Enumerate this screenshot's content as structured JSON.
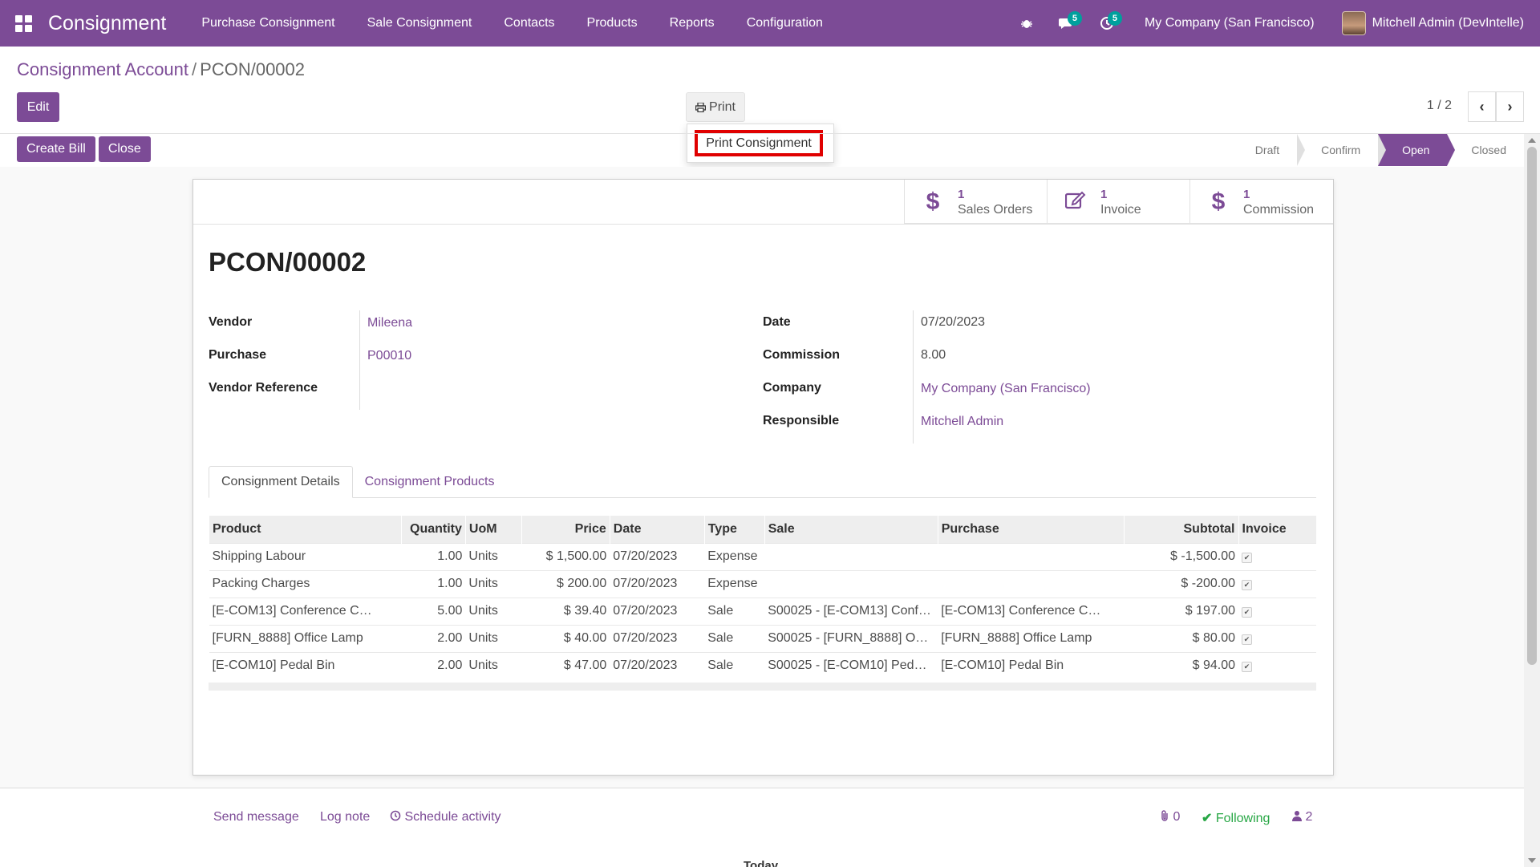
{
  "navbar": {
    "app_name": "Consignment",
    "menu": [
      "Purchase Consignment",
      "Sale Consignment",
      "Contacts",
      "Products",
      "Reports",
      "Configuration"
    ],
    "messages_badge": "5",
    "activities_badge": "5",
    "company": "My Company (San Francisco)",
    "user": "Mitchell Admin (DevIntelle)",
    "bg_color": "#7c4b96"
  },
  "breadcrumb": {
    "parent": "Consignment Account",
    "separator": "/",
    "current": "PCON/00002"
  },
  "toolbar": {
    "edit_label": "Edit",
    "print_label": "Print",
    "print_menu_item": "Print Consignment",
    "pager": "1 / 2"
  },
  "statusbar": {
    "buttons": [
      "Create Bill",
      "Close"
    ],
    "stages": [
      "Draft",
      "Confirm",
      "Open",
      "Closed"
    ],
    "active_stage": "Open"
  },
  "smart_buttons": [
    {
      "value": "1",
      "label": "Sales Orders",
      "icon": "dollar-icon"
    },
    {
      "value": "1",
      "label": "Invoice",
      "icon": "pencil-square-icon"
    },
    {
      "value": "1",
      "label": "Commission",
      "icon": "dollar-icon"
    }
  ],
  "record": {
    "title": "PCON/00002",
    "left_fields": [
      {
        "label": "Vendor",
        "value": "Mileena"
      },
      {
        "label": "Purchase",
        "value": "P00010"
      },
      {
        "label": "Vendor Reference",
        "value": ""
      }
    ],
    "right_fields": [
      {
        "label": "Date",
        "value": "07/20/2023"
      },
      {
        "label": "Commission",
        "value": "8.00"
      },
      {
        "label": "Company",
        "value": "My Company (San Francisco)"
      },
      {
        "label": "Responsible",
        "value": "Mitchell Admin"
      }
    ]
  },
  "tabs": [
    "Consignment Details",
    "Consignment Products"
  ],
  "lines": {
    "columns": [
      "Product",
      "Quantity",
      "UoM",
      "Price",
      "Date",
      "Type",
      "Sale",
      "Purchase",
      "Subtotal",
      "Invoice"
    ],
    "rows": [
      {
        "product": "Shipping Labour",
        "quantity": "1.00",
        "uom": "Units",
        "price": "$ 1,500.00",
        "date": "07/20/2023",
        "type": "Expense",
        "sale": "",
        "purchase": "",
        "subtotal": "$ -1,500.00",
        "invoice": true
      },
      {
        "product": "Packing Charges",
        "quantity": "1.00",
        "uom": "Units",
        "price": "$ 200.00",
        "date": "07/20/2023",
        "type": "Expense",
        "sale": "",
        "purchase": "",
        "subtotal": "$ -200.00",
        "invoice": true
      },
      {
        "product": "[E-COM13] Conference C…",
        "quantity": "5.00",
        "uom": "Units",
        "price": "$ 39.40",
        "date": "07/20/2023",
        "type": "Sale",
        "sale": "S00025 - [E-COM13] Conf…",
        "purchase": "[E-COM13] Conference C…",
        "subtotal": "$ 197.00",
        "invoice": true
      },
      {
        "product": "[FURN_8888] Office Lamp",
        "quantity": "2.00",
        "uom": "Units",
        "price": "$ 40.00",
        "date": "07/20/2023",
        "type": "Sale",
        "sale": "S00025 - [FURN_8888] O…",
        "purchase": "[FURN_8888] Office Lamp",
        "subtotal": "$ 80.00",
        "invoice": true
      },
      {
        "product": "[E-COM10] Pedal Bin",
        "quantity": "2.00",
        "uom": "Units",
        "price": "$ 47.00",
        "date": "07/20/2023",
        "type": "Sale",
        "sale": "S00025 - [E-COM10] Ped…",
        "purchase": "[E-COM10] Pedal Bin",
        "subtotal": "$ 94.00",
        "invoice": true
      }
    ]
  },
  "chatter": {
    "send_message": "Send message",
    "log_note": "Log note",
    "schedule_activity": "Schedule activity",
    "attachments": "0",
    "following": "Following",
    "followers": "2",
    "today": "Today"
  }
}
